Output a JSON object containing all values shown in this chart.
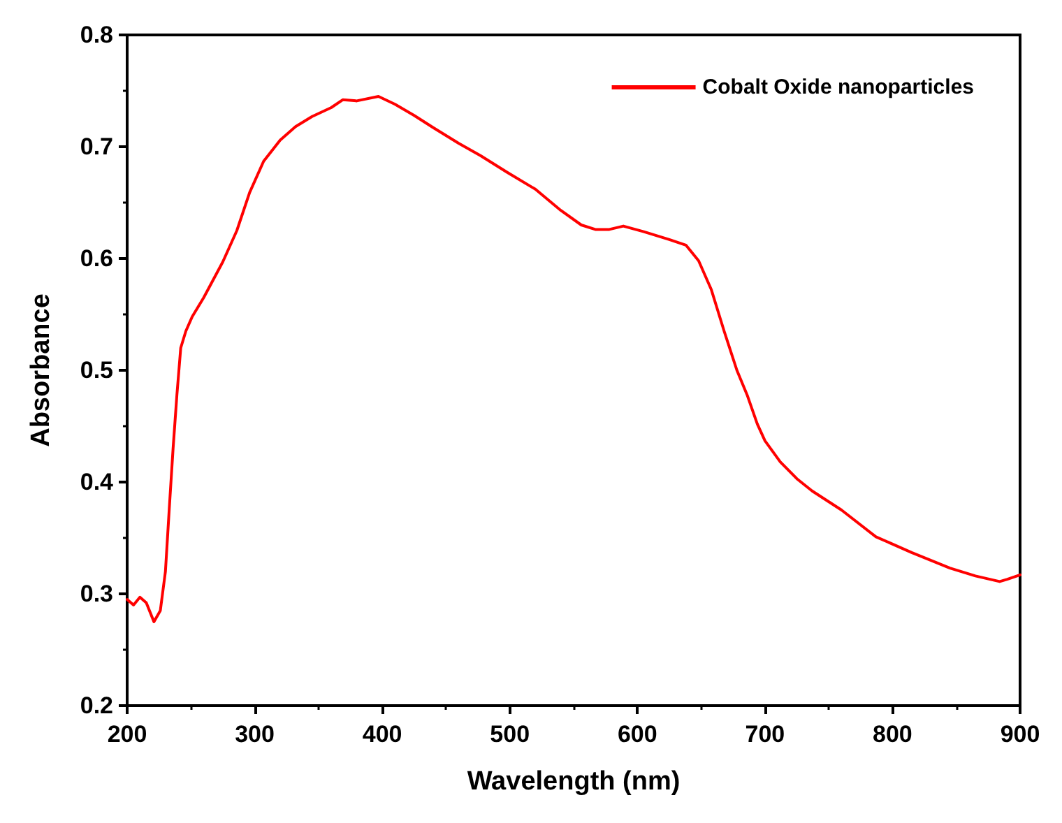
{
  "chart_data": {
    "type": "line",
    "xlabel": "Wavelength (nm)",
    "ylabel": "Absorbance",
    "xlim": [
      200,
      900
    ],
    "xticks": [
      200,
      300,
      400,
      500,
      600,
      700,
      800,
      900
    ],
    "ylim": [
      0.2,
      0.8
    ],
    "yticks": [
      0.2,
      0.3,
      0.4,
      0.5,
      0.6,
      0.7,
      0.8
    ],
    "grid": false,
    "legend": "top right",
    "marker": "none",
    "line_style": "solid",
    "series": [
      {
        "name": "Cobalt Oxide nanoparticles",
        "color": "#ff0000",
        "x": [
          200,
          205,
          210,
          215,
          221,
          226,
          230,
          233,
          236,
          239,
          242,
          246,
          251,
          260,
          275,
          286,
          296,
          307,
          320,
          332,
          345,
          360,
          369,
          380,
          397,
          410,
          425,
          440,
          460,
          477,
          498,
          520,
          540,
          556,
          567,
          578,
          589,
          605,
          625,
          638,
          648,
          658,
          668,
          678,
          686,
          694,
          700,
          712,
          725,
          737,
          760,
          787,
          815,
          845,
          865,
          884,
          890,
          900
        ],
        "values": [
          0.295,
          0.29,
          0.297,
          0.292,
          0.275,
          0.285,
          0.32,
          0.376,
          0.43,
          0.478,
          0.52,
          0.535,
          0.548,
          0.565,
          0.597,
          0.625,
          0.659,
          0.687,
          0.706,
          0.718,
          0.727,
          0.735,
          0.742,
          0.741,
          0.745,
          0.738,
          0.728,
          0.717,
          0.703,
          0.692,
          0.677,
          0.662,
          0.643,
          0.63,
          0.626,
          0.626,
          0.629,
          0.624,
          0.617,
          0.612,
          0.598,
          0.572,
          0.535,
          0.5,
          0.478,
          0.452,
          0.437,
          0.418,
          0.403,
          0.392,
          0.375,
          0.351,
          0.337,
          0.323,
          0.316,
          0.311,
          0.313,
          0.317
        ]
      }
    ]
  }
}
